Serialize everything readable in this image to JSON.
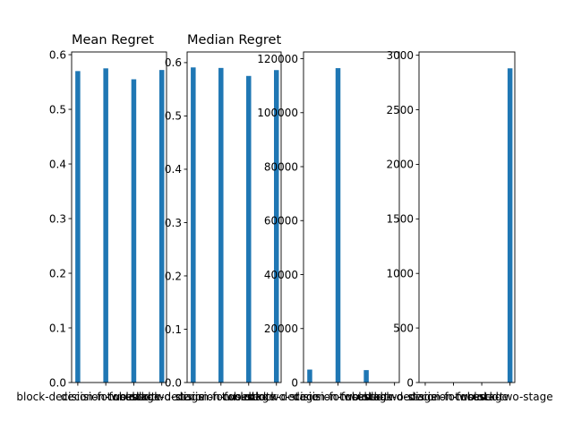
{
  "chart_data": [
    {
      "type": "bar",
      "title": "Mean Regret",
      "categories": [
        "block-decision-focused",
        "decision-focused",
        "two-stage",
        "block-two-stage"
      ],
      "values": [
        0.57,
        0.575,
        0.555,
        0.572
      ],
      "ylim": [
        0,
        0.605
      ],
      "yticks": [
        0.0,
        0.1,
        0.2,
        0.3,
        0.4,
        0.5,
        0.6
      ],
      "ytick_labels": [
        "0.0",
        "0.1",
        "0.2",
        "0.3",
        "0.4",
        "0.5",
        "0.6"
      ],
      "color": "#1f77b4"
    },
    {
      "type": "bar",
      "title": "Median Regret",
      "categories": [
        "block-decision-focused",
        "decision-focused",
        "two-stage",
        "block-two-stage"
      ],
      "values": [
        0.591,
        0.59,
        0.575,
        0.586
      ],
      "ylim": [
        0,
        0.62
      ],
      "yticks": [
        0.0,
        0.1,
        0.2,
        0.3,
        0.4,
        0.5,
        0.6
      ],
      "ytick_labels": [
        "0.0",
        "0.1",
        "0.2",
        "0.3",
        "0.4",
        "0.5",
        "0.6"
      ],
      "color": "#1f77b4"
    },
    {
      "type": "bar",
      "title": "",
      "categories": [
        "block-decision-focused",
        "decision-focused",
        "two-stage",
        "block-two-stage"
      ],
      "values": [
        4800,
        116500,
        4600,
        0
      ],
      "ylim": [
        0,
        122500
      ],
      "yticks": [
        0,
        20000,
        40000,
        60000,
        80000,
        100000,
        120000
      ],
      "ytick_labels": [
        "0",
        "20000",
        "40000",
        "60000",
        "80000",
        "100000",
        "120000"
      ],
      "color": "#1f77b4"
    },
    {
      "type": "bar",
      "title": "",
      "categories": [
        "block-decision-focused",
        "decision-focused",
        "two-stage",
        "block-two-stage"
      ],
      "values": [
        0,
        0,
        0,
        2880
      ],
      "ylim": [
        0,
        3030
      ],
      "yticks": [
        0,
        500,
        1000,
        1500,
        2000,
        2500,
        3000
      ],
      "ytick_labels": [
        "0",
        "500",
        "1000",
        "1500",
        "2000",
        "2500",
        "3000"
      ],
      "color": "#1f77b4"
    }
  ]
}
